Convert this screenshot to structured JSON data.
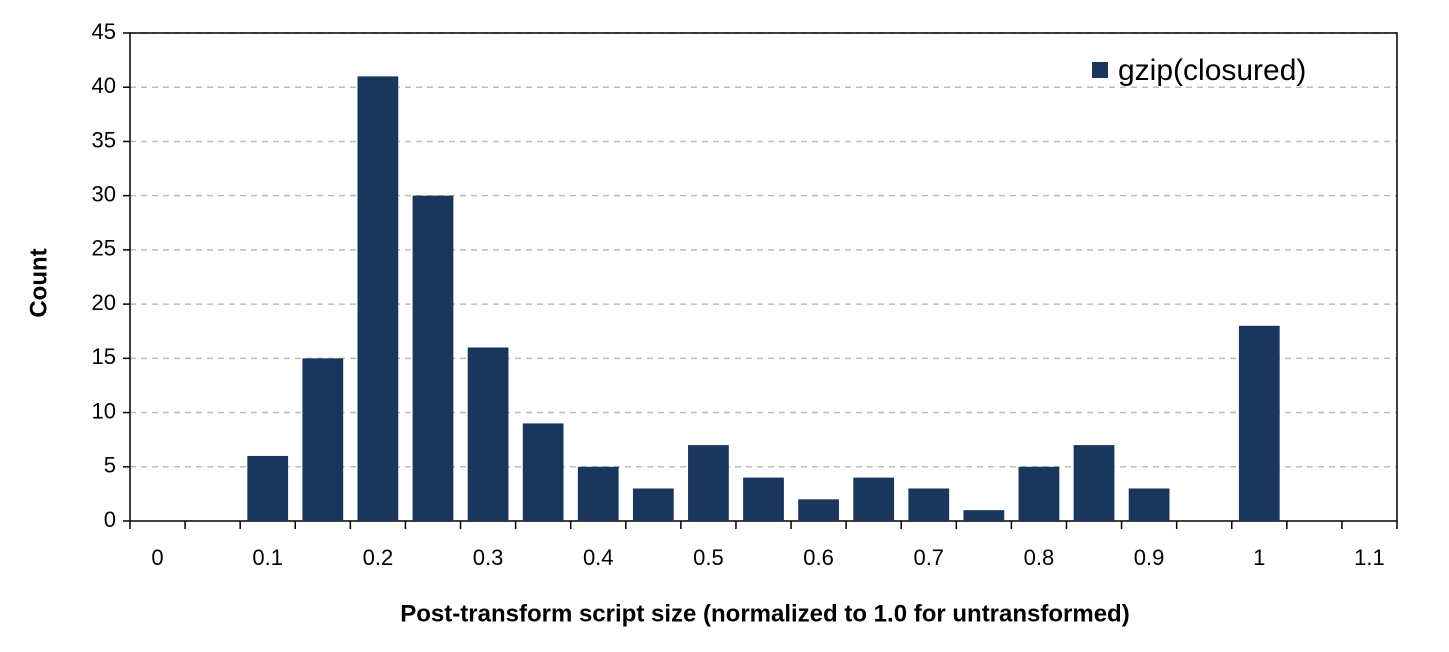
{
  "chart_data": {
    "type": "bar",
    "x_label": "Post-transform script size (normalized to 1.0 for untransformed)",
    "y_label": "Count",
    "categories": [
      "0",
      null,
      "0.1",
      null,
      "0.2",
      null,
      "0.3",
      null,
      "0.4",
      null,
      "0.5",
      null,
      "0.6",
      null,
      "0.7",
      null,
      "0.8",
      null,
      "0.9",
      null,
      "1",
      null,
      "1.1"
    ],
    "series": [
      {
        "name": "gzip(closured)",
        "color": "#1b365d",
        "values": [
          0,
          0,
          6,
          15,
          41,
          30,
          16,
          9,
          5,
          3,
          7,
          4,
          2,
          4,
          3,
          1,
          5,
          7,
          3,
          0,
          18,
          0,
          0
        ]
      }
    ],
    "ylim": [
      0,
      45
    ],
    "yticks": [
      0,
      5,
      10,
      15,
      20,
      25,
      30,
      35,
      40,
      45
    ],
    "grid": true,
    "legend": "upper-right"
  }
}
